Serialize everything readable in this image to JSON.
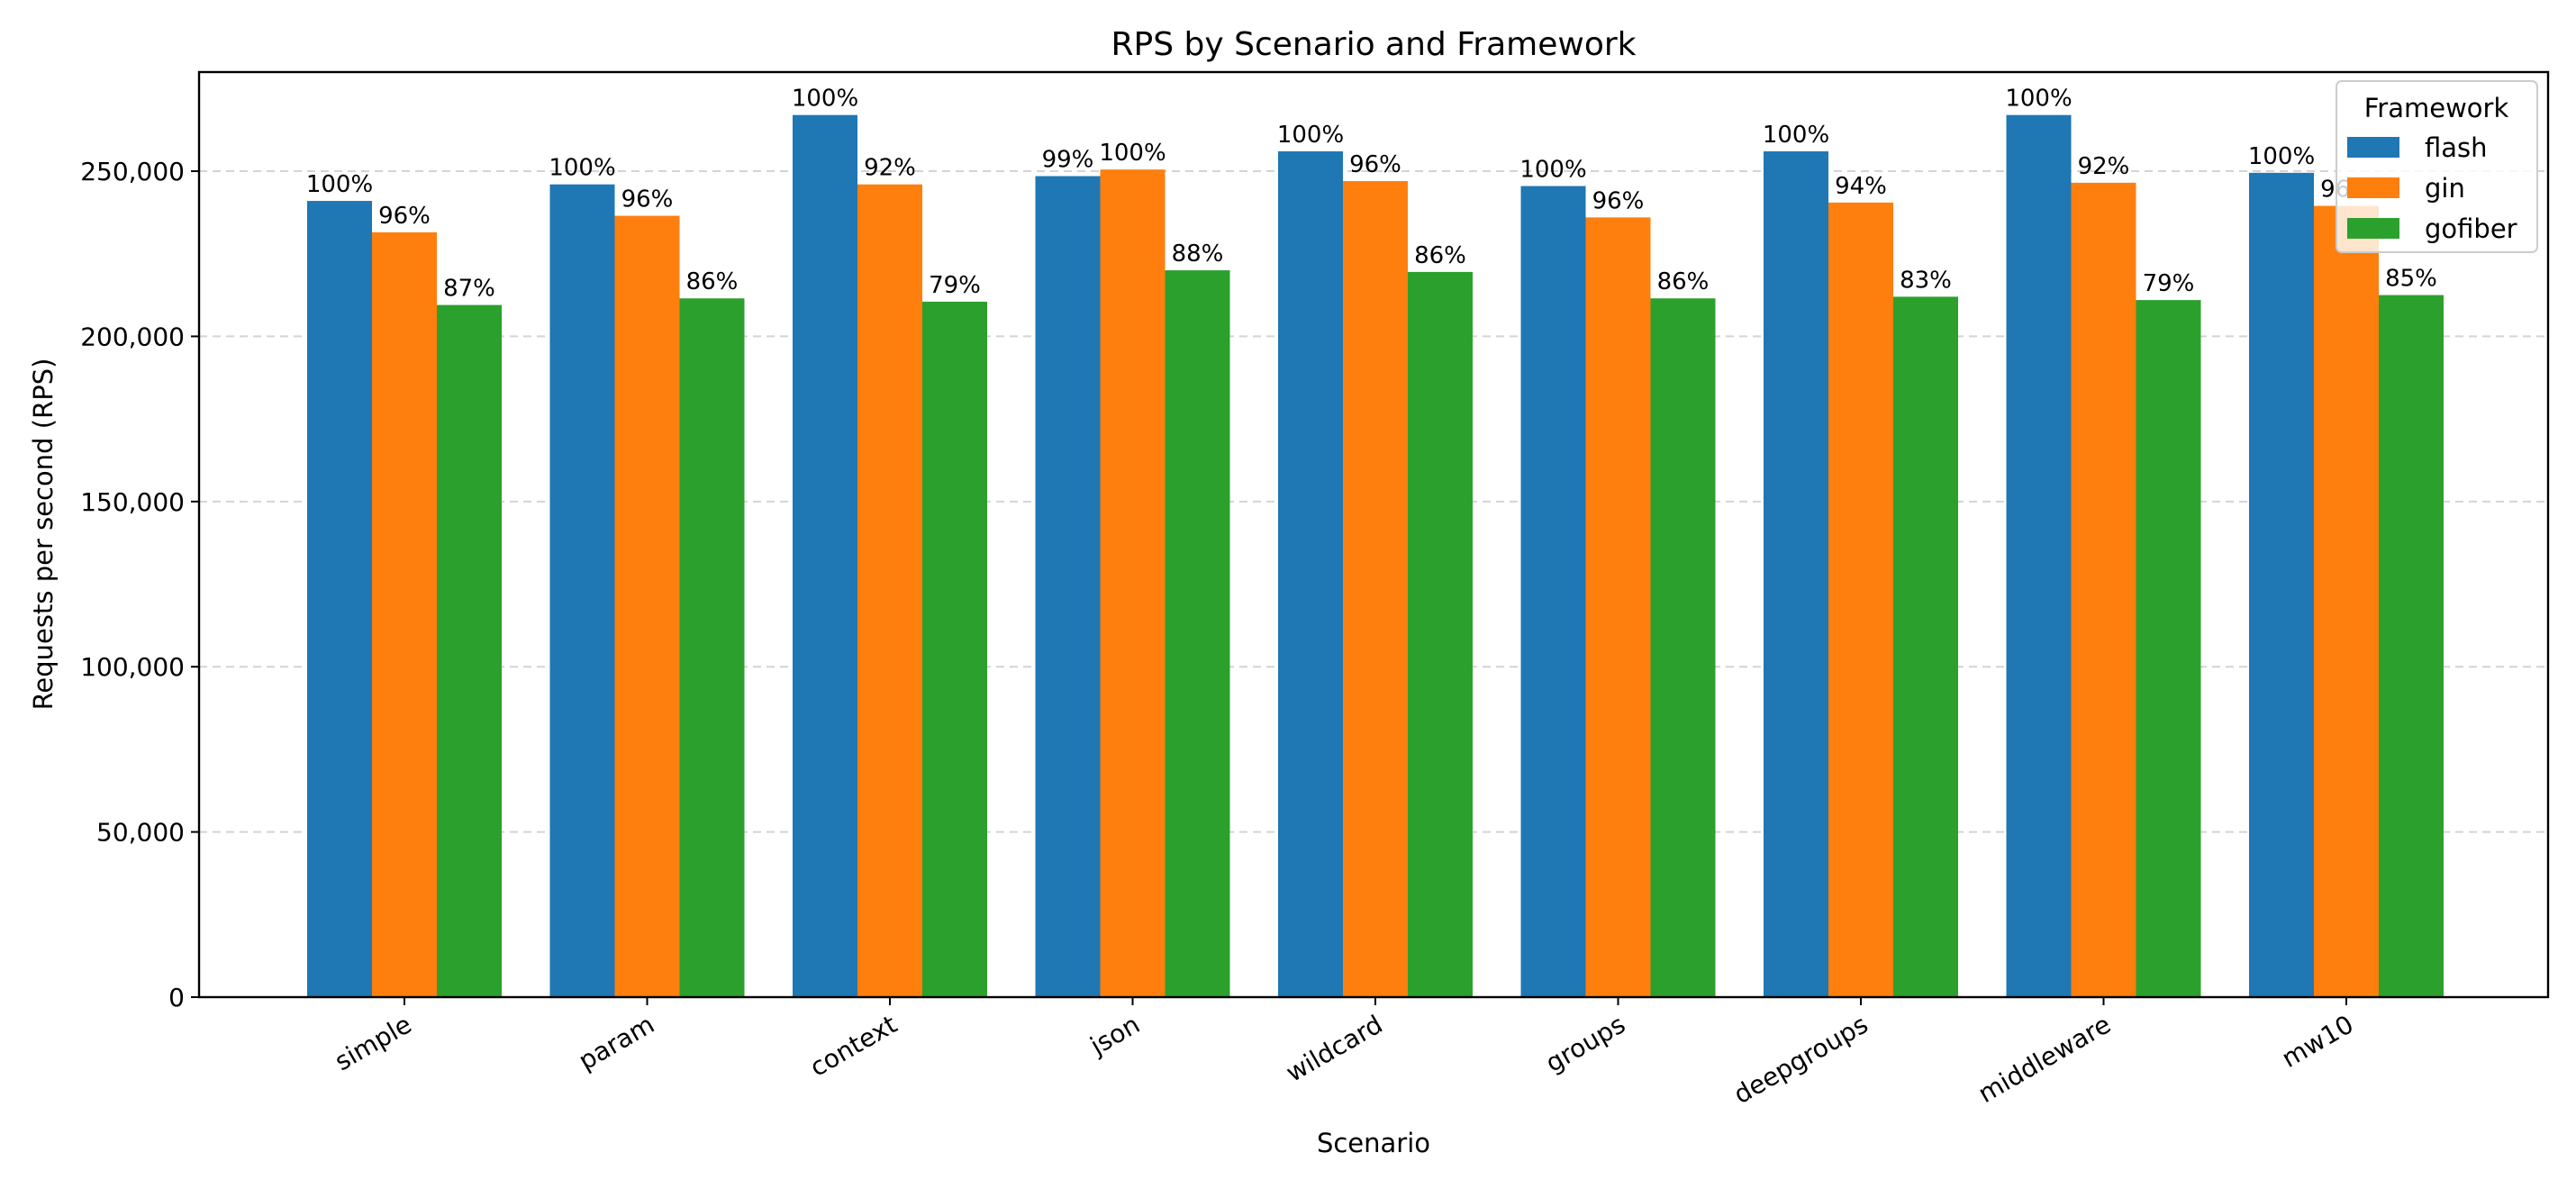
{
  "chart_data": {
    "type": "bar",
    "title": "RPS by Scenario and Framework",
    "xlabel": "Scenario",
    "ylabel": "Requests per second (RPS)",
    "ylim": [
      0,
      280000
    ],
    "yticks": [
      0,
      50000,
      100000,
      150000,
      200000,
      250000
    ],
    "ytick_labels": [
      "0",
      "50,000",
      "100,000",
      "150,000",
      "200,000",
      "250,000"
    ],
    "grid": "y-dashed",
    "categories": [
      "simple",
      "param",
      "context",
      "json",
      "wildcard",
      "groups",
      "deepgroups",
      "middleware",
      "mw10"
    ],
    "legend": {
      "title": "Framework",
      "placement": "top-right"
    },
    "series": [
      {
        "name": "flash",
        "color": "#1f77b4",
        "values": [
          241000,
          246000,
          267000,
          248500,
          256000,
          245500,
          256000,
          267000,
          249500
        ],
        "labels": [
          "100%",
          "100%",
          "100%",
          "99%",
          "100%",
          "100%",
          "100%",
          "100%",
          "100%"
        ]
      },
      {
        "name": "gin",
        "color": "#ff7f0e",
        "values": [
          231500,
          236500,
          246000,
          250500,
          247000,
          236000,
          240500,
          246500,
          239500
        ],
        "labels": [
          "96%",
          "96%",
          "92%",
          "100%",
          "96%",
          "96%",
          "94%",
          "92%",
          "96%"
        ]
      },
      {
        "name": "gofiber",
        "color": "#2ca02c",
        "values": [
          209500,
          211500,
          210500,
          220000,
          219500,
          211500,
          212000,
          211000,
          212500
        ],
        "labels": [
          "87%",
          "86%",
          "79%",
          "88%",
          "86%",
          "86%",
          "83%",
          "79%",
          "85%"
        ]
      }
    ]
  }
}
